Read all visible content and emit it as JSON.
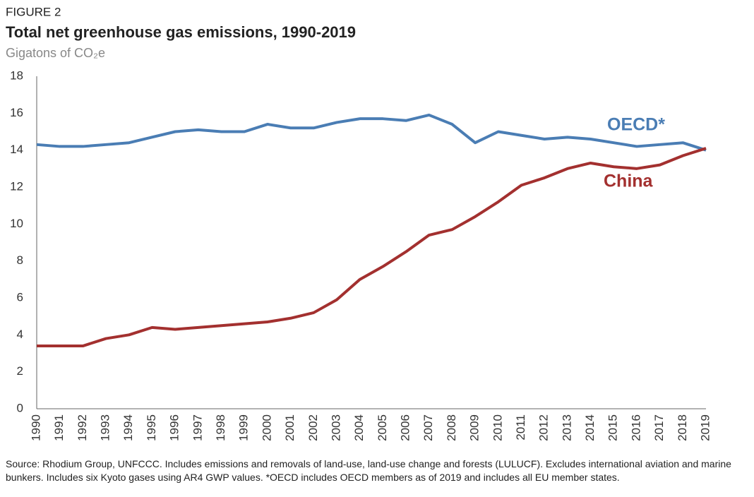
{
  "chart_data": {
    "type": "line",
    "figure_label": "FIGURE 2",
    "title": "Total net greenhouse gas emissions, 1990-2019",
    "subtitle": "Gigatons of CO₂e",
    "note": "Source: Rhodium Group, UNFCCC. Includes emissions and removals of land-use, land-use change and forests (LULUCF). Excludes international aviation and marine bunkers. Includes six Kyoto gases using AR4 GWP values. *OECD includes OECD members as of 2019 and includes all EU member states.",
    "categories": [
      "1990",
      "1991",
      "1992",
      "1993",
      "1994",
      "1995",
      "1996",
      "1997",
      "1998",
      "1999",
      "2000",
      "2001",
      "2002",
      "2003",
      "2004",
      "2005",
      "2006",
      "2007",
      "2008",
      "2009",
      "2010",
      "2011",
      "2012",
      "2013",
      "2014",
      "2015",
      "2016",
      "2017",
      "2018",
      "2019"
    ],
    "series": [
      {
        "name": "OECD*",
        "color": "#4a7db4",
        "values": [
          14.3,
          14.2,
          14.2,
          14.3,
          14.4,
          14.7,
          15.0,
          15.1,
          15.0,
          15.0,
          15.4,
          15.2,
          15.2,
          15.5,
          15.7,
          15.7,
          15.6,
          15.9,
          15.4,
          14.4,
          15.0,
          14.8,
          14.6,
          14.7,
          14.6,
          14.4,
          14.2,
          14.3,
          14.4,
          14.0
        ]
      },
      {
        "name": "China",
        "color": "#a3302f",
        "values": [
          3.4,
          3.4,
          3.4,
          3.8,
          4.0,
          4.4,
          4.3,
          4.4,
          4.5,
          4.6,
          4.7,
          4.9,
          5.2,
          5.9,
          7.0,
          7.7,
          8.5,
          9.4,
          9.7,
          10.4,
          11.2,
          12.1,
          12.5,
          13.0,
          13.3,
          13.1,
          13.0,
          13.2,
          13.7,
          14.1
        ]
      }
    ],
    "ylim": [
      0,
      18
    ],
    "yticks": [
      0,
      2,
      4,
      6,
      8,
      10,
      12,
      14,
      16,
      18
    ],
    "grid": false
  }
}
